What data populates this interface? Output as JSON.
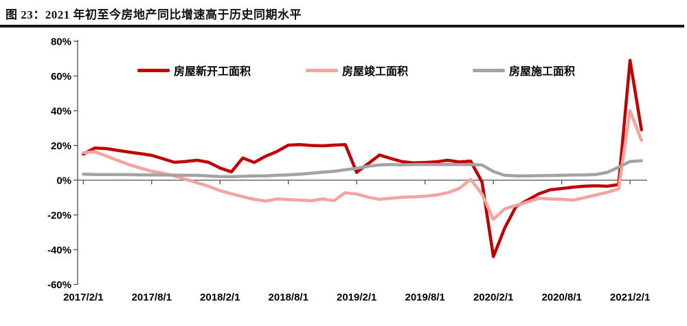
{
  "title": "图 23：2021 年初至今房地产同比增速高于历史同期水平",
  "chart_data": {
    "type": "line",
    "title": "图 23：2021 年初至今房地产同比增速高于历史同期水平",
    "grid": false,
    "legend_position": "top",
    "axis_color": "#4d4d4d",
    "ylim": [
      -60,
      80
    ],
    "y_ticks": [
      80,
      60,
      40,
      20,
      0,
      -20,
      -40,
      -60
    ],
    "y_tick_labels": [
      "80%",
      "60%",
      "40%",
      "20%",
      "0%",
      "-20%",
      "-40%",
      "-60%"
    ],
    "x_tick_labels": [
      "2017/2/1",
      "2017/8/1",
      "2018/2/1",
      "2018/8/1",
      "2019/2/1",
      "2019/8/1",
      "2020/2/1",
      "2020/8/1",
      "2021/2/1"
    ],
    "x_label_every": 6,
    "x": [
      "2017/2",
      "2017/3",
      "2017/4",
      "2017/5",
      "2017/6",
      "2017/7",
      "2017/8",
      "2017/9",
      "2017/10",
      "2017/11",
      "2017/12",
      "2018/1",
      "2018/2",
      "2018/3",
      "2018/4",
      "2018/5",
      "2018/6",
      "2018/7",
      "2018/8",
      "2018/9",
      "2018/10",
      "2018/11",
      "2018/12",
      "2019/1",
      "2019/2",
      "2019/3",
      "2019/4",
      "2019/5",
      "2019/6",
      "2019/7",
      "2019/8",
      "2019/9",
      "2019/10",
      "2019/11",
      "2019/12",
      "2020/1",
      "2020/2",
      "2020/3",
      "2020/4",
      "2020/5",
      "2020/6",
      "2020/7",
      "2020/8",
      "2020/9",
      "2020/10",
      "2020/11",
      "2020/12",
      "2021/1",
      "2021/2",
      "2021/3"
    ],
    "unit": "percent",
    "series": [
      {
        "id": "new-starts",
        "name": "房屋新开工面积",
        "color": "#C00000",
        "values": [
          15,
          18.5,
          18.2,
          17.2,
          16.2,
          15.3,
          14.3,
          12.3,
          10.3,
          10.8,
          11.5,
          10.3,
          7.0,
          4.8,
          12.8,
          10.2,
          13.8,
          16.5,
          20.2,
          20.5,
          20.0,
          19.8,
          20.2,
          20.5,
          4.5,
          9.5,
          14.5,
          12.5,
          10.7,
          10.0,
          10.2,
          10.6,
          11.5,
          10.5,
          11.0,
          -1.0,
          -44.0,
          -27.5,
          -15.0,
          -11.5,
          -7.8,
          -5.5,
          -4.8,
          -4.0,
          -3.5,
          -3.2,
          -3.5,
          -2.5,
          69.0,
          29.0
        ]
      },
      {
        "id": "completions",
        "name": "房屋竣工面积",
        "color": "#F2A49E",
        "values": [
          15.8,
          16.3,
          14.0,
          11.5,
          9.0,
          7.0,
          5.2,
          4.0,
          2.5,
          0.5,
          -1.5,
          -3.5,
          -6.0,
          -7.8,
          -9.5,
          -11.0,
          -12.0,
          -10.8,
          -11.2,
          -11.5,
          -11.8,
          -10.8,
          -11.8,
          -7.2,
          -8.0,
          -9.8,
          -11.0,
          -10.4,
          -9.8,
          -9.6,
          -9.2,
          -8.5,
          -7.2,
          -4.8,
          0.5,
          -8.0,
          -22.5,
          -16.5,
          -14.5,
          -12.5,
          -10.4,
          -10.8,
          -11.0,
          -11.5,
          -10.0,
          -8.5,
          -7.0,
          -5.0,
          40.0,
          23.0
        ]
      },
      {
        "id": "under-construction",
        "name": "房屋施工面积",
        "color": "#A3A3A3",
        "values": [
          3.5,
          3.3,
          3.3,
          3.2,
          3.2,
          3.1,
          3.0,
          3.0,
          2.9,
          2.9,
          2.8,
          2.4,
          2.1,
          2.0,
          2.2,
          2.5,
          2.5,
          2.8,
          3.1,
          3.5,
          4.0,
          4.6,
          5.1,
          6.0,
          6.8,
          8.0,
          8.8,
          9.0,
          8.8,
          9.0,
          9.1,
          9.0,
          9.0,
          9.0,
          9.0,
          8.8,
          5.0,
          2.8,
          2.5,
          2.5,
          2.6,
          2.7,
          2.8,
          3.0,
          3.0,
          3.3,
          4.5,
          7.5,
          10.8,
          11.2
        ]
      }
    ]
  }
}
